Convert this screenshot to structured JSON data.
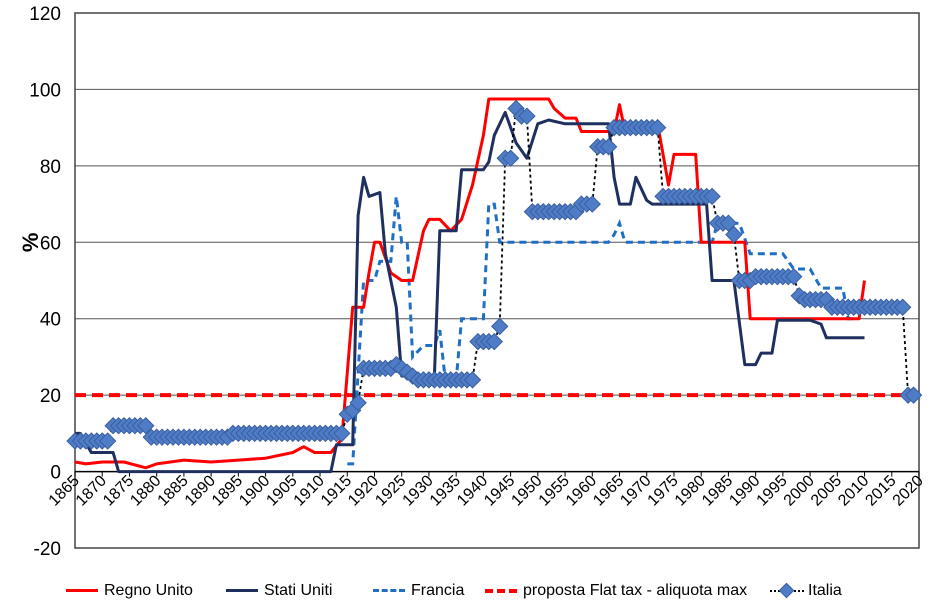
{
  "chart_data": {
    "type": "line",
    "ylabel": "%",
    "xlabel": "",
    "ylim": [
      -20,
      120
    ],
    "yticks": [
      -20,
      0,
      20,
      40,
      60,
      80,
      100,
      120
    ],
    "xlim": [
      1865,
      2020
    ],
    "xticks": [
      1865,
      1870,
      1875,
      1880,
      1885,
      1890,
      1895,
      1900,
      1905,
      1910,
      1915,
      1920,
      1925,
      1930,
      1935,
      1940,
      1945,
      1950,
      1955,
      1960,
      1965,
      1970,
      1975,
      1980,
      1985,
      1990,
      1995,
      2000,
      2005,
      2010,
      2015,
      2020
    ],
    "grid": "horizontal",
    "legend": "bottom",
    "series": [
      {
        "name": "Regno Unito",
        "color": "#ff0000",
        "style": "solid",
        "points": [
          [
            1865,
            2.5
          ],
          [
            1867,
            2
          ],
          [
            1870,
            2.5
          ],
          [
            1874,
            2.5
          ],
          [
            1878,
            1
          ],
          [
            1880,
            2
          ],
          [
            1885,
            3
          ],
          [
            1890,
            2.5
          ],
          [
            1895,
            3
          ],
          [
            1900,
            3.5
          ],
          [
            1905,
            5
          ],
          [
            1907,
            6.5
          ],
          [
            1909,
            5
          ],
          [
            1912,
            5
          ],
          [
            1914,
            8.5
          ],
          [
            1916,
            43
          ],
          [
            1918,
            43
          ],
          [
            1919,
            52
          ],
          [
            1920,
            60
          ],
          [
            1921,
            60
          ],
          [
            1923,
            52
          ],
          [
            1925,
            50
          ],
          [
            1927,
            50
          ],
          [
            1929,
            63
          ],
          [
            1930,
            66
          ],
          [
            1932,
            66
          ],
          [
            1934,
            63
          ],
          [
            1936,
            66
          ],
          [
            1938,
            75
          ],
          [
            1940,
            88
          ],
          [
            1941,
            97.5
          ],
          [
            1952,
            97.5
          ],
          [
            1953,
            95
          ],
          [
            1955,
            92.5
          ],
          [
            1957,
            92.5
          ],
          [
            1958,
            89
          ],
          [
            1964,
            89
          ],
          [
            1965,
            96
          ],
          [
            1966,
            89
          ],
          [
            1970,
            91
          ],
          [
            1972,
            91
          ],
          [
            1974,
            75
          ],
          [
            1975,
            83
          ],
          [
            1979,
            83
          ],
          [
            1980,
            60
          ],
          [
            1988,
            60
          ],
          [
            1989,
            40
          ],
          [
            2009,
            40
          ],
          [
            2010,
            50
          ]
        ]
      },
      {
        "name": "Stati Uniti",
        "color": "#1f3060",
        "style": "solid",
        "points": [
          [
            1865,
            10
          ],
          [
            1866,
            10
          ],
          [
            1868,
            5
          ],
          [
            1872,
            5
          ],
          [
            1873,
            0
          ],
          [
            1912,
            0
          ],
          [
            1913,
            7
          ],
          [
            1916,
            7
          ],
          [
            1917,
            67
          ],
          [
            1918,
            77
          ],
          [
            1919,
            72
          ],
          [
            1921,
            73
          ],
          [
            1922,
            57
          ],
          [
            1923,
            50
          ],
          [
            1924,
            43
          ],
          [
            1925,
            25
          ],
          [
            1929,
            25
          ],
          [
            1930,
            24
          ],
          [
            1931,
            25
          ],
          [
            1932,
            63
          ],
          [
            1935,
            63
          ],
          [
            1936,
            79
          ],
          [
            1940,
            79
          ],
          [
            1941,
            81
          ],
          [
            1942,
            88
          ],
          [
            1944,
            94
          ],
          [
            1946,
            86
          ],
          [
            1948,
            82
          ],
          [
            1950,
            91
          ],
          [
            1952,
            92
          ],
          [
            1955,
            91
          ],
          [
            1963,
            91
          ],
          [
            1964,
            77
          ],
          [
            1965,
            70
          ],
          [
            1967,
            70
          ],
          [
            1968,
            77
          ],
          [
            1970,
            71
          ],
          [
            1971,
            70
          ],
          [
            1981,
            70
          ],
          [
            1982,
            50
          ],
          [
            1986,
            50
          ],
          [
            1988,
            28
          ],
          [
            1990,
            28
          ],
          [
            1991,
            31
          ],
          [
            1993,
            31
          ],
          [
            1994,
            39.6
          ],
          [
            2000,
            39.6
          ],
          [
            2002,
            38.6
          ],
          [
            2003,
            35
          ],
          [
            2010,
            35
          ]
        ]
      },
      {
        "name": "Francia",
        "color": "#1f6fc5",
        "style": "dashed",
        "points": [
          [
            1915,
            2
          ],
          [
            1916,
            2
          ],
          [
            1918,
            50
          ],
          [
            1920,
            50
          ],
          [
            1921,
            55
          ],
          [
            1923,
            55
          ],
          [
            1924,
            72
          ],
          [
            1925,
            60
          ],
          [
            1926,
            60
          ],
          [
            1927,
            30
          ],
          [
            1929,
            33
          ],
          [
            1931,
            33
          ],
          [
            1932,
            37
          ],
          [
            1933,
            24
          ],
          [
            1935,
            24
          ],
          [
            1936,
            40
          ],
          [
            1940,
            40
          ],
          [
            1941,
            70
          ],
          [
            1942,
            70
          ],
          [
            1943,
            60
          ],
          [
            1963,
            60
          ],
          [
            1964,
            62
          ],
          [
            1965,
            65
          ],
          [
            1966,
            60
          ],
          [
            1982,
            60
          ],
          [
            1983,
            65
          ],
          [
            1987,
            65
          ],
          [
            1989,
            57
          ],
          [
            1995,
            57
          ],
          [
            1997,
            53
          ],
          [
            2000,
            53
          ],
          [
            2002,
            48
          ],
          [
            2006,
            48
          ],
          [
            2007,
            40
          ],
          [
            2008,
            40
          ]
        ]
      },
      {
        "name": "proposta Flat tax - aliquota max",
        "color": "#ff0000",
        "style": "dashed-thick",
        "points": [
          [
            1865,
            20
          ],
          [
            2020,
            20
          ]
        ]
      },
      {
        "name": "Italia",
        "color": "#4f7cc7",
        "style": "diamond-dotted",
        "points": [
          [
            1865,
            8
          ],
          [
            1866,
            8
          ],
          [
            1867,
            8
          ],
          [
            1868,
            8
          ],
          [
            1869,
            8
          ],
          [
            1870,
            8
          ],
          [
            1871,
            8
          ],
          [
            1872,
            12
          ],
          [
            1873,
            12
          ],
          [
            1874,
            12
          ],
          [
            1875,
            12
          ],
          [
            1876,
            12
          ],
          [
            1877,
            12
          ],
          [
            1878,
            12
          ],
          [
            1879,
            9
          ],
          [
            1880,
            9
          ],
          [
            1881,
            9
          ],
          [
            1882,
            9
          ],
          [
            1883,
            9
          ],
          [
            1884,
            9
          ],
          [
            1885,
            9
          ],
          [
            1886,
            9
          ],
          [
            1887,
            9
          ],
          [
            1888,
            9
          ],
          [
            1889,
            9
          ],
          [
            1890,
            9
          ],
          [
            1891,
            9
          ],
          [
            1892,
            9
          ],
          [
            1893,
            9
          ],
          [
            1894,
            10
          ],
          [
            1895,
            10
          ],
          [
            1896,
            10
          ],
          [
            1897,
            10
          ],
          [
            1898,
            10
          ],
          [
            1899,
            10
          ],
          [
            1900,
            10
          ],
          [
            1901,
            10
          ],
          [
            1902,
            10
          ],
          [
            1903,
            10
          ],
          [
            1904,
            10
          ],
          [
            1905,
            10
          ],
          [
            1906,
            10
          ],
          [
            1907,
            10
          ],
          [
            1908,
            10
          ],
          [
            1909,
            10
          ],
          [
            1910,
            10
          ],
          [
            1911,
            10
          ],
          [
            1912,
            10
          ],
          [
            1913,
            10
          ],
          [
            1914,
            10
          ],
          [
            1915,
            15
          ],
          [
            1916,
            16
          ],
          [
            1917,
            18
          ],
          [
            1918,
            27
          ],
          [
            1919,
            27
          ],
          [
            1920,
            27
          ],
          [
            1921,
            27
          ],
          [
            1922,
            27
          ],
          [
            1923,
            27
          ],
          [
            1924,
            28
          ],
          [
            1925,
            27
          ],
          [
            1926,
            26
          ],
          [
            1927,
            25
          ],
          [
            1928,
            24
          ],
          [
            1929,
            24
          ],
          [
            1930,
            24
          ],
          [
            1931,
            24
          ],
          [
            1932,
            24
          ],
          [
            1933,
            24
          ],
          [
            1934,
            24
          ],
          [
            1935,
            24
          ],
          [
            1936,
            24
          ],
          [
            1937,
            24
          ],
          [
            1938,
            24
          ],
          [
            1939,
            34
          ],
          [
            1940,
            34
          ],
          [
            1941,
            34
          ],
          [
            1942,
            34
          ],
          [
            1943,
            38
          ],
          [
            1944,
            82
          ],
          [
            1945,
            82
          ],
          [
            1946,
            95
          ],
          [
            1947,
            93
          ],
          [
            1948,
            93
          ],
          [
            1949,
            68
          ],
          [
            1950,
            68
          ],
          [
            1951,
            68
          ],
          [
            1952,
            68
          ],
          [
            1953,
            68
          ],
          [
            1954,
            68
          ],
          [
            1955,
            68
          ],
          [
            1956,
            68
          ],
          [
            1957,
            68
          ],
          [
            1958,
            70
          ],
          [
            1959,
            70
          ],
          [
            1960,
            70
          ],
          [
            1961,
            85
          ],
          [
            1962,
            85
          ],
          [
            1963,
            85
          ],
          [
            1964,
            90
          ],
          [
            1965,
            90
          ],
          [
            1966,
            90
          ],
          [
            1967,
            90
          ],
          [
            1968,
            90
          ],
          [
            1969,
            90
          ],
          [
            1970,
            90
          ],
          [
            1971,
            90
          ],
          [
            1972,
            90
          ],
          [
            1973,
            72
          ],
          [
            1974,
            72
          ],
          [
            1975,
            72
          ],
          [
            1976,
            72
          ],
          [
            1977,
            72
          ],
          [
            1978,
            72
          ],
          [
            1979,
            72
          ],
          [
            1980,
            72
          ],
          [
            1981,
            72
          ],
          [
            1982,
            72
          ],
          [
            1983,
            65
          ],
          [
            1984,
            65
          ],
          [
            1985,
            65
          ],
          [
            1986,
            62
          ],
          [
            1987,
            50
          ],
          [
            1988,
            50
          ],
          [
            1989,
            50
          ],
          [
            1990,
            51
          ],
          [
            1991,
            51
          ],
          [
            1992,
            51
          ],
          [
            1993,
            51
          ],
          [
            1994,
            51
          ],
          [
            1995,
            51
          ],
          [
            1996,
            51
          ],
          [
            1997,
            51
          ],
          [
            1998,
            46
          ],
          [
            1999,
            45
          ],
          [
            2000,
            45
          ],
          [
            2001,
            45
          ],
          [
            2002,
            45
          ],
          [
            2003,
            45
          ],
          [
            2004,
            43
          ],
          [
            2005,
            43
          ],
          [
            2006,
            43
          ],
          [
            2007,
            43
          ],
          [
            2008,
            43
          ],
          [
            2009,
            43
          ],
          [
            2010,
            43
          ],
          [
            2011,
            43
          ],
          [
            2012,
            43
          ],
          [
            2013,
            43
          ],
          [
            2014,
            43
          ],
          [
            2015,
            43
          ],
          [
            2016,
            43
          ],
          [
            2017,
            43
          ],
          [
            2018,
            20
          ],
          [
            2019,
            20
          ]
        ]
      }
    ]
  }
}
